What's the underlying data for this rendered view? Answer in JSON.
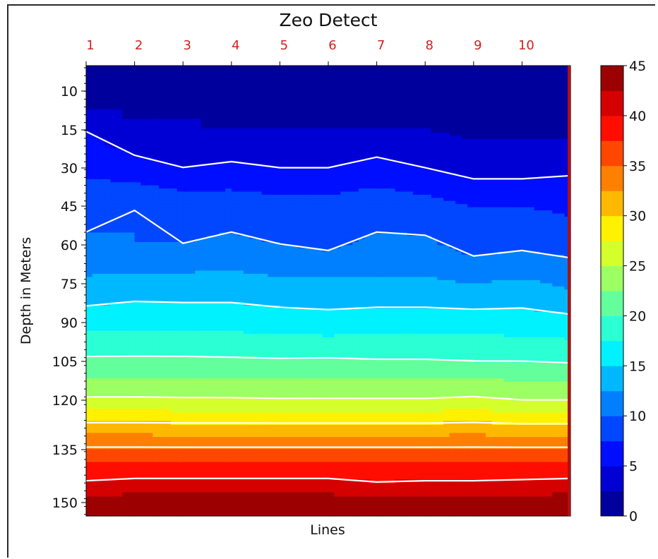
{
  "chart_data": {
    "type": "heatmap",
    "title": "Zeo Detect",
    "xlabel": "Lines",
    "ylabel": "Depth in Meters",
    "x_ticks": [
      "1",
      "2",
      "3",
      "4",
      "5",
      "6",
      "7",
      "8",
      "9",
      "10"
    ],
    "y_ticks": [
      "10",
      "15",
      "30",
      "45",
      "60",
      "75",
      "90",
      "105",
      "120",
      "135",
      "150"
    ],
    "colorbar_ticks": [
      "0",
      "5",
      "10",
      "15",
      "20",
      "25",
      "30",
      "35",
      "40",
      "45"
    ],
    "colorbar_range": [
      0,
      45
    ],
    "colormap": "jet",
    "x": [
      1,
      2,
      3,
      4,
      5,
      6,
      7,
      8,
      9,
      10,
      11
    ],
    "contour_levels": [
      5,
      10,
      15,
      20,
      25,
      30,
      35,
      40
    ],
    "contour_color": "#ffffff",
    "top_label_color": "#d42020",
    "profiles": [
      {
        "y": 5,
        "values": [
          0,
          0,
          0,
          0,
          0,
          0,
          0,
          0,
          0,
          0,
          0
        ]
      },
      {
        "y": 10,
        "values": [
          1,
          1,
          1,
          1,
          1,
          1,
          1,
          1,
          1,
          1,
          1
        ]
      },
      {
        "y": 15,
        "values": [
          5,
          3,
          3,
          2.5,
          2.5,
          2.5,
          2.5,
          2.5,
          2,
          2,
          2
        ]
      },
      {
        "y": 30,
        "values": [
          7,
          6,
          5,
          5.5,
          5,
          5,
          6,
          5,
          4,
          4,
          4.5
        ]
      },
      {
        "y": 45,
        "values": [
          9,
          10,
          9,
          9,
          8.5,
          8.5,
          9,
          8.5,
          7.5,
          7.5,
          7
        ]
      },
      {
        "y": 60,
        "values": [
          10.5,
          10,
          10,
          10.5,
          10,
          9.5,
          10.5,
          10.5,
          9,
          9.5,
          9
        ]
      },
      {
        "y": 75,
        "values": [
          13,
          13.5,
          13.5,
          13.5,
          13,
          13,
          13,
          13,
          12.5,
          13,
          12
        ]
      },
      {
        "y": 90,
        "values": [
          16.5,
          16.8,
          16.6,
          16.6,
          16.3,
          16,
          16.3,
          16.3,
          16.3,
          16.2,
          15.8
        ]
      },
      {
        "y": 105,
        "values": [
          20.5,
          20.5,
          20.5,
          20.4,
          20.3,
          20.4,
          20.2,
          20.2,
          20,
          20,
          19.8
        ]
      },
      {
        "y": 120,
        "values": [
          25.4,
          25.4,
          25.3,
          25.3,
          25.2,
          25.2,
          25.2,
          25.2,
          25.5,
          25,
          25
        ]
      },
      {
        "y": 135,
        "values": [
          35.5,
          35.5,
          35.5,
          35.5,
          35.5,
          35.5,
          35.5,
          35.5,
          35.5,
          35.5,
          35.5
        ]
      },
      {
        "y": 145,
        "values": [
          40.6,
          41,
          41,
          41,
          41,
          41,
          40.4,
          40.6,
          40.6,
          40.8,
          41
        ]
      },
      {
        "y": 152,
        "values": [
          45,
          45,
          45,
          45,
          45,
          45,
          45,
          45,
          45,
          45,
          45
        ]
      }
    ]
  }
}
